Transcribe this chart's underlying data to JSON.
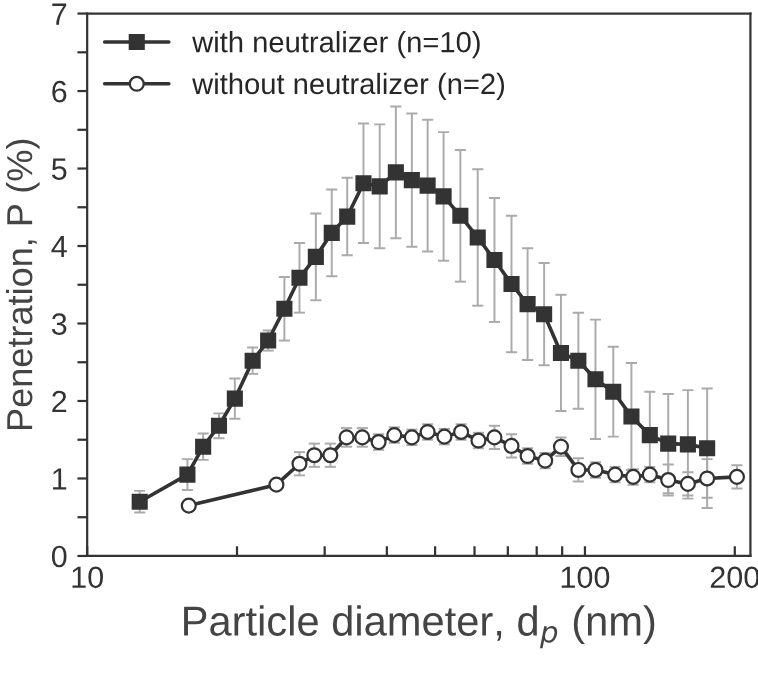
{
  "chart_data": {
    "type": "line",
    "xlabel": "Particle diameter, d$_{p}$ (nm)",
    "ylabel": "Penetration, P (%)",
    "log": "x",
    "xlim": [
      10,
      215
    ],
    "xticks": [
      10,
      {
        "value": 20,
        "label": null
      },
      {
        "value": 30,
        "label": null
      },
      {
        "value": 40,
        "label": null
      },
      {
        "value": 50,
        "label": null
      },
      {
        "value": 60,
        "label": null
      },
      {
        "value": 70,
        "label": null
      },
      {
        "value": 80,
        "label": null
      },
      {
        "value": 90,
        "label": null
      },
      100,
      200
    ],
    "ylim": [
      0,
      7
    ],
    "yticks": [
      0,
      {
        "value": 0.5,
        "label": null
      },
      1,
      {
        "value": 1.5,
        "label": null
      },
      2,
      {
        "value": 2.5,
        "label": null
      },
      3,
      {
        "value": 3.5,
        "label": null
      },
      4,
      {
        "value": 4.5,
        "label": null
      },
      5,
      {
        "value": 5.5,
        "label": null
      },
      6,
      {
        "value": 6.5,
        "label": null
      },
      7
    ],
    "grid": false,
    "legend": "top left",
    "line_style": "solid",
    "series": [
      {
        "name": "with neutralizer (n=10)",
        "color": "#333333",
        "marker": "square",
        "x": [
          12.75,
          15.9,
          17.1,
          18.4,
          19.8,
          21.5,
          23.1,
          24.9,
          26.7,
          28.8,
          31.0,
          33.3,
          35.9,
          38.7,
          41.7,
          44.9,
          48.3,
          52.0,
          56.2,
          60.9,
          65.8,
          71.2,
          76.7,
          82.8,
          89.5,
          97,
          105,
          114,
          124,
          135,
          147,
          161,
          176
        ],
        "values": [
          0.7,
          1.05,
          1.41,
          1.68,
          2.03,
          2.52,
          2.78,
          3.19,
          3.59,
          3.86,
          4.17,
          4.38,
          4.81,
          4.77,
          4.95,
          4.85,
          4.78,
          4.64,
          4.39,
          4.11,
          3.82,
          3.51,
          3.25,
          3.12,
          2.62,
          2.52,
          2.28,
          2.12,
          1.8,
          1.56,
          1.45,
          1.44,
          1.39
        ],
        "errors": [
          0.14,
          0.2,
          0.17,
          0.16,
          0.26,
          0.17,
          0.13,
          0.41,
          0.45,
          0.56,
          0.56,
          0.5,
          0.77,
          0.8,
          0.85,
          0.86,
          0.85,
          0.83,
          0.85,
          0.88,
          0.8,
          0.88,
          0.72,
          0.66,
          0.75,
          0.62,
          0.77,
          0.58,
          0.69,
          0.56,
          0.64,
          0.7,
          0.77
        ]
      },
      {
        "name": "without neutralizer (n=2)",
        "color": "#333333",
        "marker": "circle",
        "x": [
          16.0,
          24.0,
          26.7,
          28.6,
          30.8,
          33.2,
          35.7,
          38.5,
          41.4,
          44.9,
          48.3,
          52.2,
          56.4,
          61.1,
          65.8,
          71.2,
          76.7,
          83.2,
          89.5,
          97,
          105,
          115,
          125,
          135,
          147,
          161,
          176,
          202
        ],
        "values": [
          0.65,
          0.92,
          1.19,
          1.3,
          1.3,
          1.53,
          1.53,
          1.47,
          1.56,
          1.53,
          1.6,
          1.54,
          1.6,
          1.49,
          1.53,
          1.42,
          1.29,
          1.23,
          1.41,
          1.11,
          1.11,
          1.05,
          1.02,
          1.05,
          0.98,
          0.93,
          1.0,
          1.02
        ],
        "errors": [
          null,
          null,
          0.15,
          0.15,
          0.15,
          0.12,
          0.12,
          0.1,
          0.1,
          0.1,
          0.1,
          0.1,
          0.1,
          0.1,
          0.15,
          0.15,
          0.1,
          0.1,
          0.12,
          0.15,
          0.1,
          0.1,
          0.1,
          0.1,
          0.2,
          0.15,
          0.25,
          0.15
        ]
      }
    ]
  }
}
